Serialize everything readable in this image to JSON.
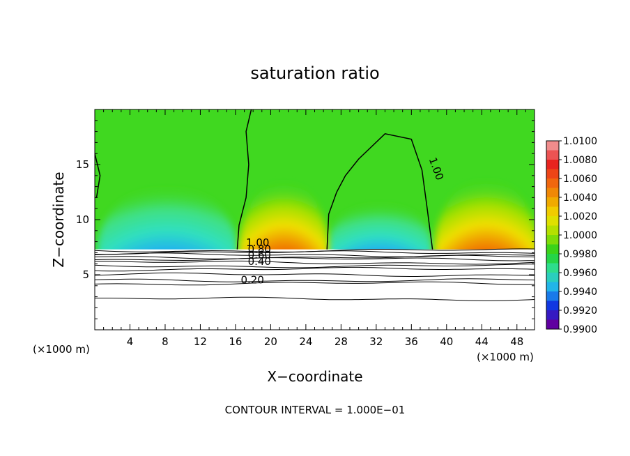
{
  "chart_data": {
    "type": "heatmap",
    "title": "saturation ratio",
    "xlabel": "X−coordinate",
    "ylabel": "Z−coordinate",
    "x_unit": "(×1000 m)",
    "y_unit": "(×1000 m)",
    "xlim": [
      0,
      50
    ],
    "ylim": [
      0,
      20
    ],
    "x_ticks": [
      4,
      8,
      12,
      16,
      20,
      24,
      28,
      32,
      36,
      40,
      44,
      48
    ],
    "y_ticks": [
      5,
      10,
      15
    ],
    "x_tick_labels": [
      "4",
      "8",
      "12",
      "16",
      "20",
      "24",
      "28",
      "32",
      "36",
      "40",
      "44",
      "48"
    ],
    "y_tick_labels": [
      "5",
      "10",
      "15"
    ],
    "footnote": "CONTOUR INTERVAL = 1.000E−01",
    "colorbar": {
      "min": 0.99,
      "max": 1.01,
      "labels": [
        "1.0100",
        "1.0080",
        "1.0060",
        "1.0040",
        "1.0020",
        "1.0000",
        "0.9980",
        "0.9960",
        "0.9940",
        "0.9920",
        "0.9900"
      ],
      "colors": [
        "#f08c8c",
        "#e82020",
        "#f06010",
        "#f0a000",
        "#f0e000",
        "#a0e000",
        "#20d020",
        "#30e0a0",
        "#20b0f0",
        "#1030e0",
        "#6000a0"
      ]
    },
    "contour_labels": [
      "1.00",
      "0.80",
      "0.60",
      "0.40",
      "0.20",
      "1.00"
    ],
    "features": {
      "cloud_base_z": 7.3,
      "warm_peaks": [
        {
          "x": 21.5,
          "z_top": 12.2,
          "x0": 16.4,
          "x1": 26.2
        },
        {
          "x": 44.5,
          "z_top": 12.4,
          "x0": 38.6,
          "x1": 50
        }
      ],
      "dry_regions": [
        {
          "x0": 0.3,
          "x1": 16.2,
          "z_top": 13
        },
        {
          "x0": 26.4,
          "x1": 38.4,
          "z_top": 11.5
        }
      ],
      "lower_contour_levels_z": [
        7.2,
        7.0,
        6.8,
        6.6,
        6.4,
        6.1,
        5.8,
        5.5,
        5.0,
        4.5,
        4.2,
        2.8
      ]
    }
  }
}
